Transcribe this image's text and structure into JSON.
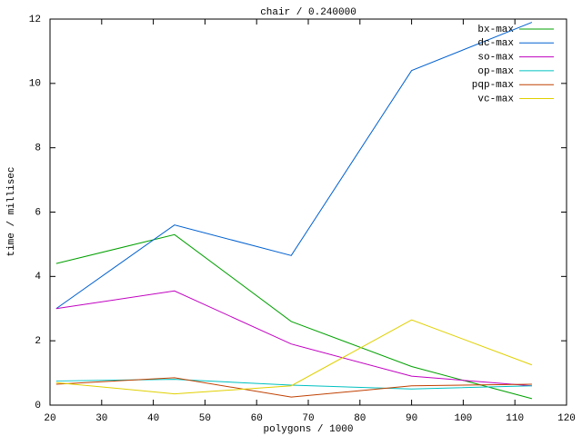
{
  "chart_data": {
    "type": "line",
    "title": "chair / 0.240000",
    "x_label": "polygons / 1000",
    "y_label": "time / millisec",
    "x": [
      21.2,
      44.1,
      66.7,
      90,
      113.3
    ],
    "series": [
      {
        "name": "bx-max",
        "color": "#00a000",
        "values": [
          4.4,
          5.3,
          2.6,
          1.2,
          0.2
        ]
      },
      {
        "name": "dc-max",
        "color": "#0060d0",
        "values": [
          3.0,
          5.6,
          4.65,
          10.4,
          11.9
        ]
      },
      {
        "name": "so-max",
        "color": "#c000c0",
        "values": [
          3.0,
          3.55,
          1.9,
          0.9,
          0.6
        ]
      },
      {
        "name": "op-max",
        "color": "#00c0c0",
        "values": [
          0.75,
          0.8,
          0.62,
          0.5,
          0.6
        ]
      },
      {
        "name": "pqp-max",
        "color": "#c04000",
        "values": [
          0.65,
          0.85,
          0.25,
          0.6,
          0.65
        ]
      },
      {
        "name": "vc-max",
        "color": "#e0d000",
        "values": [
          0.7,
          0.35,
          0.6,
          2.65,
          1.25
        ]
      }
    ],
    "xlim": [
      20,
      120
    ],
    "xticks": [
      20,
      30,
      40,
      50,
      60,
      70,
      80,
      90,
      100,
      110,
      120
    ],
    "ylim": [
      0,
      12
    ],
    "yticks": [
      0,
      2,
      4,
      6,
      8,
      10,
      12
    ],
    "grid": false,
    "legend": "top-right"
  }
}
